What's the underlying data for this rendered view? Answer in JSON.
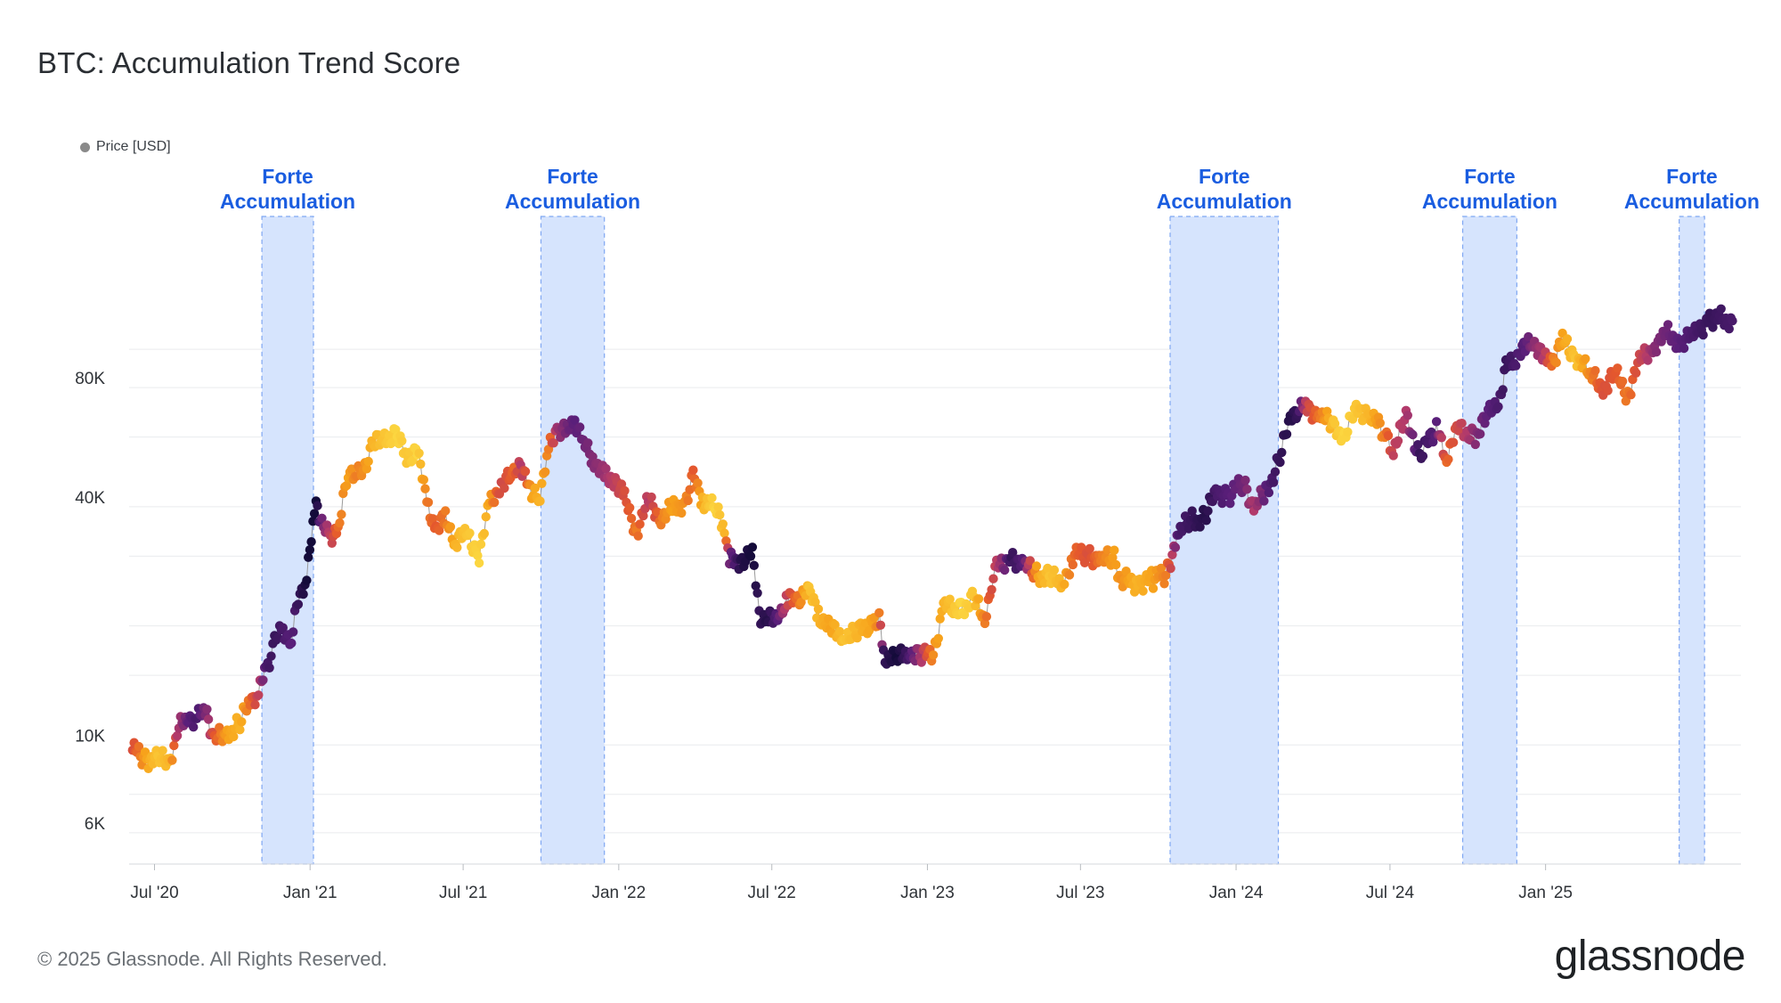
{
  "header": {
    "title": "BTC: Accumulation Trend Score",
    "legend_label": "Price [USD]",
    "legend_color": "#8a8a8a"
  },
  "footer": {
    "copyright": "© 2025 Glassnode. All Rights Reserved.",
    "logo": "glassnode"
  },
  "colors": {
    "band_fill": "#d6e4fd",
    "band_stroke": "#7ea6f2",
    "band_label": "#1a5de0",
    "grid": "#e9ebee",
    "line": "#9a9a9a",
    "score_scale": [
      "#fde74c",
      "#f7a21b",
      "#e4572e",
      "#b23a6b",
      "#5a1f7a",
      "#140b3a"
    ]
  },
  "chart_data": {
    "type": "scatter",
    "title": "BTC: Accumulation Trend Score",
    "xlabel": "",
    "ylabel": "",
    "y_scale": "log",
    "ylim": [
      5000,
      220000
    ],
    "x_range": [
      "2020-06-01",
      "2025-08-20"
    ],
    "x_ticks": [
      {
        "date": "2020-07-01",
        "label": "Jul '20"
      },
      {
        "date": "2021-01-01",
        "label": "Jan '21"
      },
      {
        "date": "2021-07-01",
        "label": "Jul '21"
      },
      {
        "date": "2022-01-01",
        "label": "Jan '22"
      },
      {
        "date": "2022-07-01",
        "label": "Jul '22"
      },
      {
        "date": "2023-01-01",
        "label": "Jan '23"
      },
      {
        "date": "2023-07-01",
        "label": "Jul '23"
      },
      {
        "date": "2024-01-01",
        "label": "Jan '24"
      },
      {
        "date": "2024-07-01",
        "label": "Jul '24"
      },
      {
        "date": "2025-01-01",
        "label": "Jan '25"
      }
    ],
    "y_ticks": [
      {
        "value": 6000,
        "label": "6K"
      },
      {
        "value": 10000,
        "label": "10K"
      },
      {
        "value": 40000,
        "label": "40K"
      },
      {
        "value": 80000,
        "label": "80K"
      }
    ],
    "y_grid_values": [
      6000,
      7500,
      10000,
      15000,
      20000,
      30000,
      40000,
      60000,
      80000,
      100000
    ],
    "legend": [
      {
        "name": "Price [USD]",
        "color": "#8a8a8a"
      }
    ],
    "bands": [
      {
        "label_line1": "Forte",
        "label_line2": "Accumulation",
        "start": "2020-11-05",
        "end": "2021-01-05"
      },
      {
        "label_line1": "Forte",
        "label_line2": "Accumulation",
        "start": "2021-10-01",
        "end": "2021-12-15"
      },
      {
        "label_line1": "Forte",
        "label_line2": "Accumulation",
        "start": "2023-10-15",
        "end": "2024-02-20"
      },
      {
        "label_line1": "Forte",
        "label_line2": "Accumulation",
        "start": "2024-09-25",
        "end": "2024-11-28"
      },
      {
        "label_line1": "Forte",
        "label_line2": "Accumulation",
        "start": "2025-06-08",
        "end": "2025-07-08"
      }
    ],
    "series": [
      {
        "name": "Price [USD]",
        "color_by": "accumulation_trend_score",
        "points": [
          [
            "2020-06-05",
            9700,
            0.45
          ],
          [
            "2020-06-20",
            9300,
            0.2
          ],
          [
            "2020-07-05",
            9100,
            0.1
          ],
          [
            "2020-07-20",
            9200,
            0.15
          ],
          [
            "2020-07-28",
            10900,
            0.6
          ],
          [
            "2020-08-10",
            11700,
            0.8
          ],
          [
            "2020-08-20",
            11800,
            0.85
          ],
          [
            "2020-09-01",
            11900,
            0.7
          ],
          [
            "2020-09-10",
            10300,
            0.4
          ],
          [
            "2020-09-25",
            10700,
            0.2
          ],
          [
            "2020-10-10",
            11300,
            0.15
          ],
          [
            "2020-10-22",
            12900,
            0.35
          ],
          [
            "2020-11-01",
            13700,
            0.55
          ],
          [
            "2020-11-10",
            15300,
            0.85
          ],
          [
            "2020-11-20",
            18500,
            0.9
          ],
          [
            "2020-11-30",
            19200,
            0.85
          ],
          [
            "2020-12-10",
            18700,
            0.8
          ],
          [
            "2020-12-18",
            23100,
            0.9
          ],
          [
            "2020-12-28",
            27000,
            1.0
          ],
          [
            "2021-01-08",
            40000,
            1.0
          ],
          [
            "2021-01-15",
            36800,
            0.75
          ],
          [
            "2021-01-25",
            32500,
            0.55
          ],
          [
            "2021-02-05",
            37600,
            0.3
          ],
          [
            "2021-02-15",
            48000,
            0.2
          ],
          [
            "2021-02-25",
            50000,
            0.3
          ],
          [
            "2021-03-05",
            48000,
            0.25
          ],
          [
            "2021-03-15",
            58000,
            0.15
          ],
          [
            "2021-03-30",
            58500,
            0.1
          ],
          [
            "2021-04-14",
            62000,
            0.05
          ],
          [
            "2021-04-25",
            52000,
            0.1
          ],
          [
            "2021-05-08",
            57000,
            0.05
          ],
          [
            "2021-05-19",
            40000,
            0.3
          ],
          [
            "2021-05-30",
            35500,
            0.4
          ],
          [
            "2021-06-10",
            37000,
            0.3
          ],
          [
            "2021-06-22",
            33000,
            0.15
          ],
          [
            "2021-07-05",
            34000,
            0.1
          ],
          [
            "2021-07-20",
            30500,
            0.05
          ],
          [
            "2021-08-01",
            40000,
            0.2
          ],
          [
            "2021-08-15",
            46000,
            0.5
          ],
          [
            "2021-08-30",
            47500,
            0.35
          ],
          [
            "2021-09-07",
            52000,
            0.6
          ],
          [
            "2021-09-20",
            42000,
            0.2
          ],
          [
            "2021-09-30",
            43800,
            0.15
          ],
          [
            "2021-10-10",
            55000,
            0.3
          ],
          [
            "2021-10-20",
            63500,
            0.65
          ],
          [
            "2021-11-01",
            61000,
            0.75
          ],
          [
            "2021-11-10",
            67000,
            0.8
          ],
          [
            "2021-11-22",
            56500,
            0.75
          ],
          [
            "2021-12-03",
            53000,
            0.7
          ],
          [
            "2021-12-15",
            47000,
            0.65
          ],
          [
            "2021-12-28",
            47500,
            0.55
          ],
          [
            "2022-01-08",
            41500,
            0.45
          ],
          [
            "2022-01-22",
            35000,
            0.3
          ],
          [
            "2022-02-05",
            41000,
            0.6
          ],
          [
            "2022-02-20",
            38000,
            0.3
          ],
          [
            "2022-03-05",
            39000,
            0.2
          ],
          [
            "2022-03-20",
            41500,
            0.25
          ],
          [
            "2022-03-30",
            47000,
            0.4
          ],
          [
            "2022-04-10",
            42000,
            0.15
          ],
          [
            "2022-04-25",
            39000,
            0.05
          ],
          [
            "2022-05-06",
            36000,
            0.15
          ],
          [
            "2022-05-12",
            29000,
            0.75
          ],
          [
            "2022-05-25",
            29500,
            0.95
          ],
          [
            "2022-06-08",
            30200,
            1.0
          ],
          [
            "2022-06-16",
            21500,
            0.9
          ],
          [
            "2022-06-25",
            20500,
            0.95
          ],
          [
            "2022-07-08",
            21500,
            0.8
          ],
          [
            "2022-07-20",
            23000,
            0.5
          ],
          [
            "2022-07-30",
            23500,
            0.35
          ],
          [
            "2022-08-14",
            24200,
            0.1
          ],
          [
            "2022-08-25",
            21500,
            0.15
          ],
          [
            "2022-09-08",
            19500,
            0.2
          ],
          [
            "2022-09-25",
            19000,
            0.1
          ],
          [
            "2022-10-10",
            19200,
            0.15
          ],
          [
            "2022-10-28",
            20500,
            0.2
          ],
          [
            "2022-11-05",
            21000,
            0.3
          ],
          [
            "2022-11-10",
            16800,
            0.9
          ],
          [
            "2022-11-25",
            16500,
            1.0
          ],
          [
            "2022-12-10",
            17200,
            0.85
          ],
          [
            "2022-12-25",
            16800,
            0.6
          ],
          [
            "2023-01-08",
            17000,
            0.25
          ],
          [
            "2023-01-20",
            22500,
            0.15
          ],
          [
            "2023-02-10",
            22000,
            0.05
          ],
          [
            "2023-02-25",
            23500,
            0.1
          ],
          [
            "2023-03-10",
            20500,
            0.3
          ],
          [
            "2023-03-20",
            27500,
            0.5
          ],
          [
            "2023-04-10",
            30000,
            0.9
          ],
          [
            "2023-04-25",
            28500,
            0.8
          ],
          [
            "2023-05-10",
            27000,
            0.2
          ],
          [
            "2023-05-25",
            26500,
            0.1
          ],
          [
            "2023-06-10",
            25500,
            0.15
          ],
          [
            "2023-06-22",
            30000,
            0.35
          ],
          [
            "2023-07-10",
            30500,
            0.45
          ],
          [
            "2023-07-25",
            29300,
            0.3
          ],
          [
            "2023-08-10",
            29500,
            0.2
          ],
          [
            "2023-08-18",
            26000,
            0.25
          ],
          [
            "2023-09-05",
            25800,
            0.15
          ],
          [
            "2023-09-25",
            26200,
            0.2
          ],
          [
            "2023-10-10",
            27000,
            0.3
          ],
          [
            "2023-10-25",
            34500,
            0.85
          ],
          [
            "2023-11-10",
            37000,
            0.9
          ],
          [
            "2023-11-25",
            37500,
            0.95
          ],
          [
            "2023-12-08",
            43500,
            0.85
          ],
          [
            "2023-12-25",
            43000,
            0.8
          ],
          [
            "2024-01-10",
            46000,
            0.75
          ],
          [
            "2024-01-22",
            40000,
            0.6
          ],
          [
            "2024-02-05",
            43000,
            0.8
          ],
          [
            "2024-02-20",
            52000,
            0.9
          ],
          [
            "2024-03-05",
            66000,
            0.95
          ],
          [
            "2024-03-14",
            72000,
            0.9
          ],
          [
            "2024-03-25",
            70000,
            0.5
          ],
          [
            "2024-04-10",
            69000,
            0.3
          ],
          [
            "2024-04-25",
            63000,
            0.1
          ],
          [
            "2024-05-08",
            61000,
            0.05
          ],
          [
            "2024-05-22",
            70000,
            0.1
          ],
          [
            "2024-06-08",
            69000,
            0.15
          ],
          [
            "2024-06-25",
            60500,
            0.3
          ],
          [
            "2024-07-05",
            56000,
            0.55
          ],
          [
            "2024-07-20",
            67000,
            0.6
          ],
          [
            "2024-08-05",
            54000,
            0.9
          ],
          [
            "2024-08-25",
            63000,
            0.8
          ],
          [
            "2024-09-06",
            54000,
            0.35
          ],
          [
            "2024-09-20",
            63000,
            0.5
          ],
          [
            "2024-10-10",
            60000,
            0.7
          ],
          [
            "2024-10-25",
            68000,
            0.8
          ],
          [
            "2024-11-08",
            76000,
            0.85
          ],
          [
            "2024-11-15",
            90000,
            0.9
          ],
          [
            "2024-11-25",
            95000,
            0.85
          ],
          [
            "2024-12-08",
            100000,
            0.8
          ],
          [
            "2024-12-17",
            106000,
            0.7
          ],
          [
            "2024-12-30",
            93000,
            0.6
          ],
          [
            "2025-01-10",
            94000,
            0.3
          ],
          [
            "2025-01-21",
            105000,
            0.2
          ],
          [
            "2025-02-05",
            97000,
            0.1
          ],
          [
            "2025-02-25",
            85000,
            0.3
          ],
          [
            "2025-03-10",
            80000,
            0.45
          ],
          [
            "2025-03-25",
            86000,
            0.4
          ],
          [
            "2025-04-08",
            77000,
            0.3
          ],
          [
            "2025-04-22",
            93000,
            0.5
          ],
          [
            "2025-05-10",
            103000,
            0.7
          ],
          [
            "2025-05-22",
            110000,
            0.75
          ],
          [
            "2025-06-08",
            105000,
            0.8
          ],
          [
            "2025-06-25",
            107000,
            0.85
          ],
          [
            "2025-07-14",
            121000,
            0.9
          ],
          [
            "2025-08-10",
            118000,
            0.85
          ]
        ]
      }
    ]
  }
}
